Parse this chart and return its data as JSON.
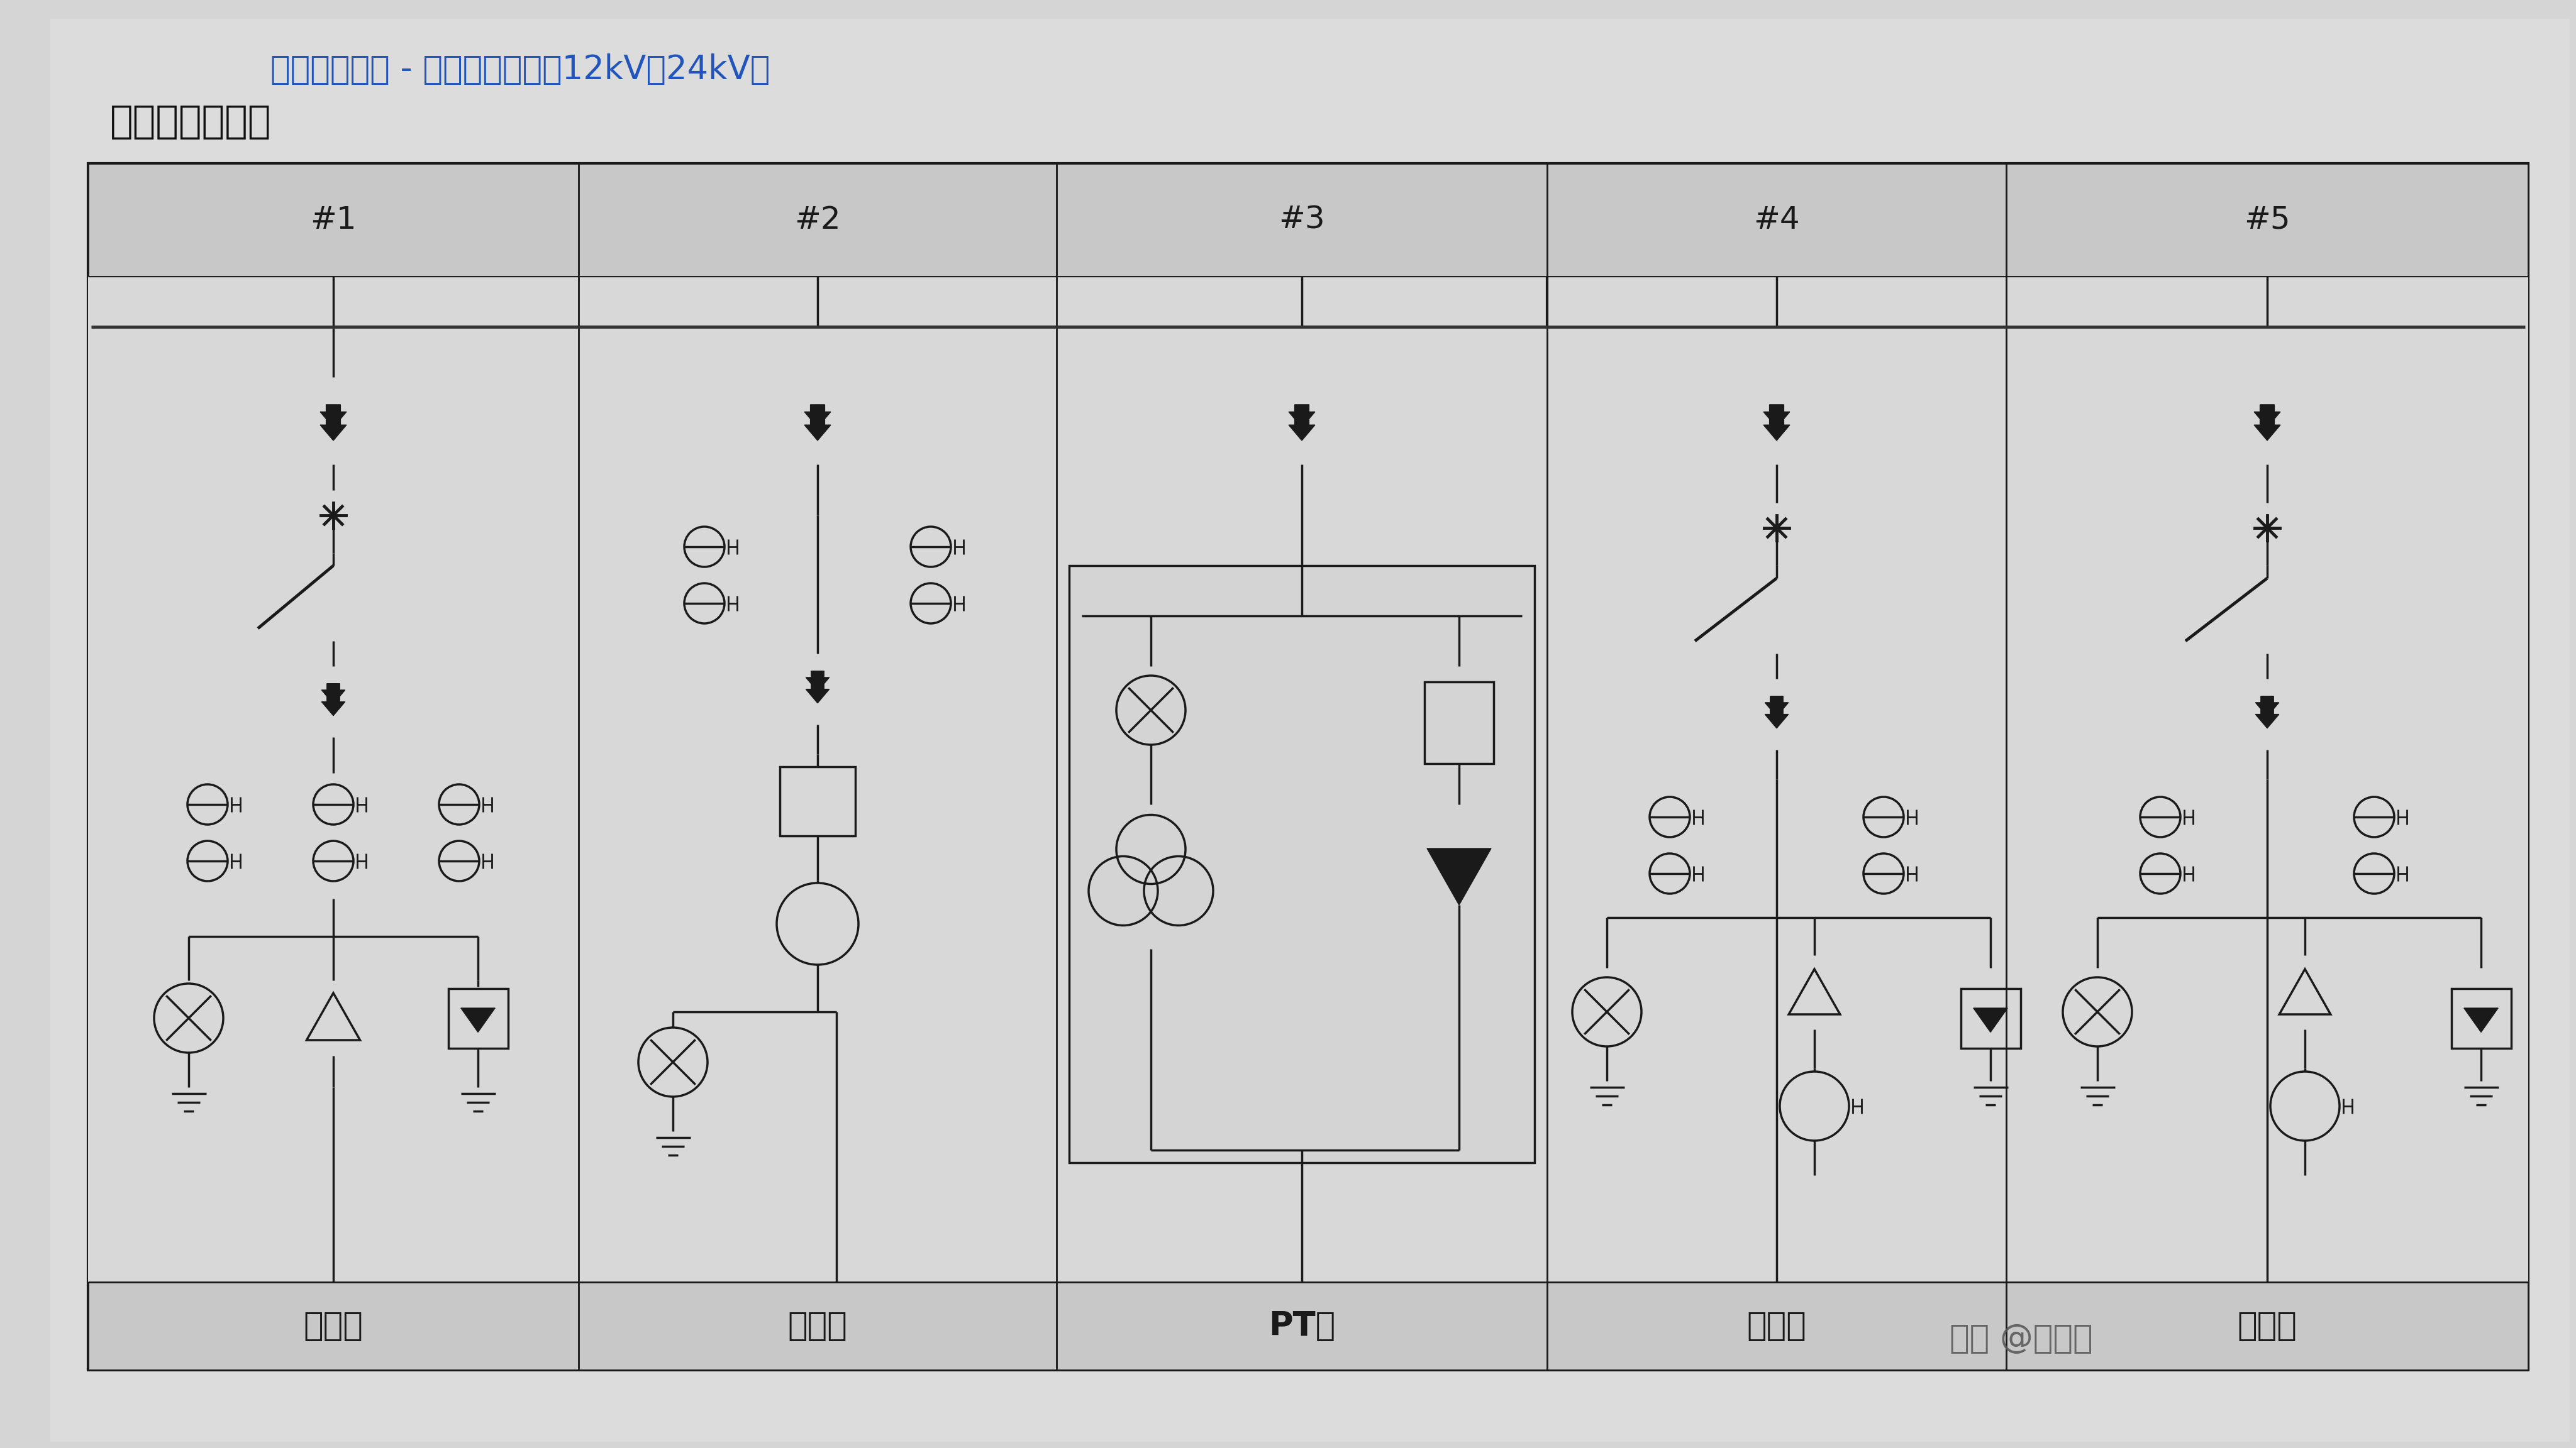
{
  "title1": "中压配电系统 - 真空断路器柜（12kV、24kV）",
  "title2": "配电系统示意图",
  "columns": [
    "#1",
    "#2",
    "#3",
    "#4",
    "#5"
  ],
  "col_labels": [
    "进线柜",
    "计量柜",
    "PT柜",
    "出线柜",
    "出线柜"
  ],
  "bg_color": "#b0b0b0",
  "paper_color": "#d8d8d8",
  "content_bg": "#d0d0d0",
  "header_bg": "#c0c0c0",
  "line_color": "#1a1a1a",
  "title1_color": "#2255bb",
  "title2_color": "#111111",
  "watermark": "知乎 @胡江伟",
  "lw": 2.5
}
